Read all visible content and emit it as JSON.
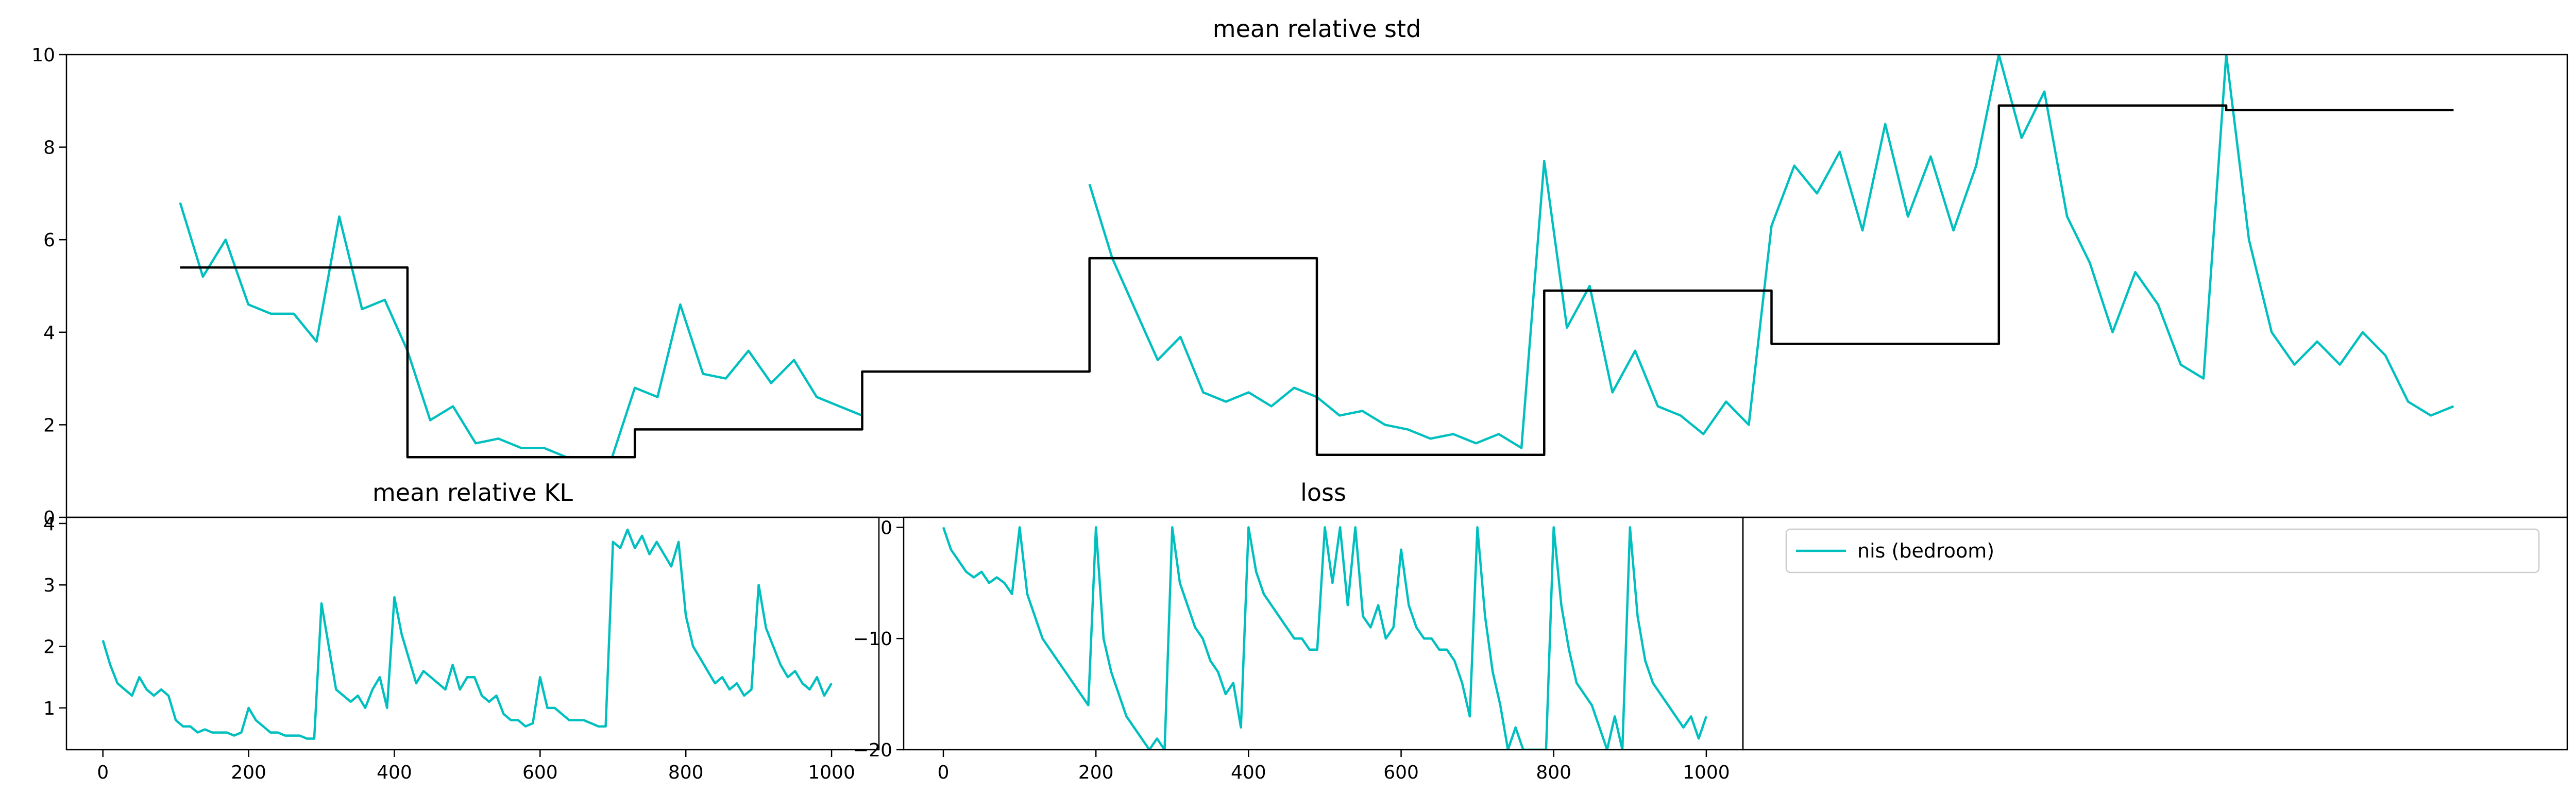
{
  "chart_data": [
    {
      "type": "line",
      "title": "mean relative std",
      "xlim": [
        -50,
        1050
      ],
      "ylim": [
        0,
        10
      ],
      "yticks": [
        0,
        2,
        4,
        6,
        8,
        10
      ],
      "x": [
        0,
        10,
        20,
        30,
        40,
        50,
        60,
        70,
        80,
        90,
        100,
        110,
        120,
        130,
        140,
        150,
        160,
        170,
        180,
        190,
        200,
        210,
        220,
        230,
        240,
        250,
        260,
        270,
        280,
        290,
        300,
        310,
        320,
        330,
        340,
        350,
        360,
        370,
        380,
        390,
        400,
        410,
        420,
        430,
        440,
        450,
        460,
        470,
        480,
        490,
        500,
        510,
        520,
        530,
        540,
        550,
        560,
        570,
        580,
        590,
        600,
        610,
        620,
        630,
        640,
        650,
        660,
        670,
        680,
        690,
        700,
        710,
        720,
        730,
        740,
        750,
        760,
        770,
        780,
        790,
        800,
        810,
        820,
        830,
        840,
        850,
        860,
        870,
        880,
        890,
        900,
        910,
        920,
        930,
        940,
        950,
        960,
        970,
        980,
        990,
        1000
      ],
      "series": [
        {
          "name": "nis (bedroom)",
          "color": "#00bfbf",
          "values": [
            6.8,
            5.2,
            6.0,
            4.6,
            4.4,
            4.4,
            3.8,
            6.5,
            4.5,
            4.7,
            3.6,
            2.1,
            2.4,
            1.6,
            1.7,
            1.5,
            1.5,
            1.3,
            1.3,
            1.3,
            2.8,
            2.6,
            4.6,
            3.1,
            3.0,
            3.6,
            2.9,
            3.4,
            2.6,
            2.4,
            2.2,
            null,
            null,
            null,
            null,
            null,
            null,
            null,
            null,
            null,
            7.2,
            5.6,
            4.5,
            3.4,
            3.9,
            2.7,
            2.5,
            2.7,
            2.4,
            2.8,
            2.6,
            2.2,
            2.3,
            2.0,
            1.9,
            1.7,
            1.8,
            1.6,
            1.8,
            1.5,
            7.7,
            4.1,
            5.0,
            2.7,
            3.6,
            2.4,
            2.2,
            1.8,
            2.5,
            2.0,
            6.3,
            7.6,
            7.0,
            7.9,
            6.2,
            8.5,
            6.5,
            7.8,
            6.2,
            7.6,
            10.0,
            8.2,
            9.2,
            6.5,
            5.5,
            4.0,
            5.3,
            4.6,
            3.3,
            3.0,
            10.0,
            6.0,
            4.0,
            3.3,
            3.8,
            3.3,
            4.0,
            3.5,
            2.5,
            2.2,
            2.4
          ]
        },
        {
          "color": "#000000",
          "x": [
            0,
            100,
            100,
            200,
            200,
            300,
            300,
            400,
            400,
            500,
            500,
            600,
            600,
            700,
            700,
            800,
            800,
            900,
            900,
            1000
          ],
          "values": [
            5.4,
            5.4,
            1.3,
            1.3,
            1.9,
            1.9,
            3.15,
            3.15,
            5.6,
            5.6,
            1.35,
            1.35,
            4.9,
            4.9,
            3.75,
            3.75,
            8.9,
            8.9,
            8.8,
            8.8
          ]
        }
      ]
    },
    {
      "type": "line",
      "title": "mean relative KL",
      "xlim": [
        -50,
        1065
      ],
      "ylim": [
        0.32,
        4.1
      ],
      "xticks": [
        0,
        200,
        400,
        600,
        800,
        1000
      ],
      "yticks": [
        1,
        2,
        3,
        4
      ],
      "x": [
        0,
        10,
        20,
        30,
        40,
        50,
        60,
        70,
        80,
        90,
        100,
        110,
        120,
        130,
        140,
        150,
        160,
        170,
        180,
        190,
        200,
        210,
        220,
        230,
        240,
        250,
        260,
        270,
        280,
        290,
        300,
        310,
        320,
        330,
        340,
        350,
        360,
        370,
        380,
        390,
        400,
        410,
        420,
        430,
        440,
        450,
        460,
        470,
        480,
        490,
        500,
        510,
        520,
        530,
        540,
        550,
        560,
        570,
        580,
        590,
        600,
        610,
        620,
        630,
        640,
        650,
        660,
        670,
        680,
        690,
        700,
        710,
        720,
        730,
        740,
        750,
        760,
        770,
        780,
        790,
        800,
        810,
        820,
        830,
        840,
        850,
        860,
        870,
        880,
        890,
        900,
        910,
        920,
        930,
        940,
        950,
        960,
        970,
        980,
        990,
        1000
      ],
      "series": [
        {
          "color": "#00bfbf",
          "values": [
            2.1,
            1.7,
            1.4,
            1.3,
            1.2,
            1.5,
            1.3,
            1.2,
            1.3,
            1.2,
            0.8,
            0.7,
            0.7,
            0.6,
            0.65,
            0.6,
            0.6,
            0.6,
            0.55,
            0.6,
            1.0,
            0.8,
            0.7,
            0.6,
            0.6,
            0.55,
            0.55,
            0.55,
            0.5,
            0.5,
            2.7,
            2.0,
            1.3,
            1.2,
            1.1,
            1.2,
            1.0,
            1.3,
            1.5,
            1.0,
            2.8,
            2.2,
            1.8,
            1.4,
            1.6,
            1.5,
            1.4,
            1.3,
            1.7,
            1.3,
            1.5,
            1.5,
            1.2,
            1.1,
            1.2,
            0.9,
            0.8,
            0.8,
            0.7,
            0.75,
            1.5,
            1.0,
            1.0,
            0.9,
            0.8,
            0.8,
            0.8,
            0.75,
            0.7,
            0.7,
            3.7,
            3.6,
            3.9,
            3.6,
            3.8,
            3.5,
            3.7,
            3.5,
            3.3,
            3.7,
            2.5,
            2.0,
            1.8,
            1.6,
            1.4,
            1.5,
            1.3,
            1.4,
            1.2,
            1.3,
            3.0,
            2.3,
            2.0,
            1.7,
            1.5,
            1.6,
            1.4,
            1.3,
            1.5,
            1.2,
            1.4
          ]
        }
      ]
    },
    {
      "type": "line",
      "title": "loss",
      "xlim": [
        -52,
        1048
      ],
      "ylim": [
        -20,
        0.9
      ],
      "xticks": [
        0,
        200,
        400,
        600,
        800,
        1000
      ],
      "yticks": [
        0,
        {
          "value": -10,
          "label": "−10"
        },
        {
          "value": -20,
          "label": "−20"
        }
      ],
      "x": [
        0,
        10,
        20,
        30,
        40,
        50,
        60,
        70,
        80,
        90,
        100,
        110,
        120,
        130,
        140,
        150,
        160,
        170,
        180,
        190,
        200,
        210,
        220,
        230,
        240,
        250,
        260,
        270,
        280,
        290,
        300,
        310,
        320,
        330,
        340,
        350,
        360,
        370,
        380,
        390,
        400,
        410,
        420,
        430,
        440,
        450,
        460,
        470,
        480,
        490,
        500,
        510,
        520,
        530,
        540,
        550,
        560,
        570,
        580,
        590,
        600,
        610,
        620,
        630,
        640,
        650,
        660,
        670,
        680,
        690,
        700,
        710,
        720,
        730,
        740,
        750,
        760,
        770,
        780,
        790,
        800,
        810,
        820,
        830,
        840,
        850,
        860,
        870,
        880,
        890,
        900,
        910,
        920,
        930,
        940,
        950,
        960,
        970,
        980,
        990,
        1000
      ],
      "series": [
        {
          "color": "#00bfbf",
          "values": [
            0,
            -2,
            -3,
            -4,
            -4.5,
            -4,
            -5,
            -4.5,
            -5,
            -6,
            0,
            -6,
            -8,
            -10,
            -11,
            -12,
            -13,
            -14,
            -15,
            -16,
            0,
            -10,
            -13,
            -15,
            -17,
            -18,
            -19,
            -20,
            -19,
            -20,
            0,
            -5,
            -7,
            -9,
            -10,
            -12,
            -13,
            -15,
            -14,
            -18,
            0,
            -4,
            -6,
            -7,
            -8,
            -9,
            -10,
            -10,
            -11,
            -11,
            0,
            -5,
            0,
            -7,
            0,
            -8,
            -9,
            -7,
            -10,
            -9,
            -2,
            -7,
            -9,
            -10,
            -10,
            -11,
            -11,
            -12,
            -14,
            -17,
            0,
            -8,
            -13,
            -16,
            -20,
            -18,
            -20,
            -20,
            -20,
            -20,
            0,
            -7,
            -11,
            -14,
            -15,
            -16,
            -18,
            -20,
            -17,
            -20,
            0,
            -8,
            -12,
            -14,
            -15,
            -16,
            -17,
            -18,
            -17,
            -19,
            -17
          ]
        }
      ]
    }
  ]
}
